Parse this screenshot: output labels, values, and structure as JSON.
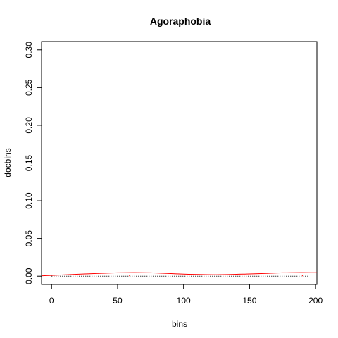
{
  "chart_data": {
    "type": "line",
    "title": "Agoraphobia",
    "xlabel": "bins",
    "ylabel": "docbins",
    "xlim": [
      -7.6,
      201
    ],
    "ylim": [
      -0.011,
      0.311
    ],
    "x_ticks": [
      0,
      50,
      100,
      150,
      200
    ],
    "x_tick_labels": [
      "0",
      "50",
      "100",
      "150",
      "200"
    ],
    "y_ticks": [
      0.0,
      0.05,
      0.1,
      0.15,
      0.2,
      0.25,
      0.3
    ],
    "y_tick_labels": [
      "0.00",
      "0.05",
      "0.10",
      "0.15",
      "0.20",
      "0.25",
      "0.30"
    ],
    "grid": false,
    "legend": "none",
    "series": [
      {
        "style": "dotted-baseline",
        "color": "#000000",
        "x": [
          0,
          194
        ],
        "y": [
          0,
          0
        ]
      },
      {
        "style": "smooth-line",
        "color": "#ff0000",
        "x": [
          -7.6,
          0,
          25,
          50,
          62,
          75,
          100,
          125,
          150,
          175,
          190,
          201
        ],
        "y": [
          0.0005,
          0.001,
          0.003,
          0.0045,
          0.0048,
          0.0045,
          0.0028,
          0.002,
          0.003,
          0.0045,
          0.0048,
          0.0046
        ]
      }
    ],
    "spikes": [
      {
        "x": 59,
        "y": 0.0015,
        "color": "#ff0000"
      },
      {
        "x": 190,
        "y": 0.0015,
        "color": "#ff0000"
      }
    ]
  }
}
